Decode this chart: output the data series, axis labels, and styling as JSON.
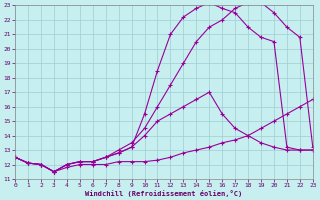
{
  "xlabel": "Windchill (Refroidissement éolien,°C)",
  "bg_color": "#c8eff0",
  "grid_color": "#9ecdd4",
  "line_color": "#990099",
  "xlim": [
    0,
    23
  ],
  "ylim": [
    11,
    23
  ],
  "xticks": [
    0,
    1,
    2,
    3,
    4,
    5,
    6,
    7,
    8,
    9,
    10,
    11,
    12,
    13,
    14,
    15,
    16,
    17,
    18,
    19,
    20,
    21,
    22,
    23
  ],
  "yticks": [
    11,
    12,
    13,
    14,
    15,
    16,
    17,
    18,
    19,
    20,
    21,
    22,
    23
  ],
  "curves": [
    {
      "x": [
        0,
        1,
        2,
        3,
        4,
        5,
        6,
        7,
        8,
        9,
        10,
        11,
        12,
        13,
        14,
        15,
        16,
        17,
        18,
        19,
        20,
        21,
        22,
        23
      ],
      "y": [
        12.5,
        12.1,
        12.0,
        11.5,
        11.8,
        12.0,
        12.0,
        12.0,
        12.2,
        12.2,
        12.2,
        12.3,
        12.5,
        12.8,
        13.0,
        13.2,
        13.5,
        13.7,
        14.0,
        14.5,
        15.0,
        15.5,
        16.0,
        16.5
      ]
    },
    {
      "x": [
        0,
        1,
        2,
        3,
        4,
        5,
        6,
        7,
        8,
        9,
        10,
        11,
        12,
        13,
        14,
        15,
        16,
        17,
        18,
        19,
        20,
        21,
        22,
        23
      ],
      "y": [
        12.5,
        12.1,
        12.0,
        11.5,
        12.0,
        12.2,
        12.2,
        12.5,
        12.8,
        13.2,
        14.0,
        15.0,
        15.5,
        16.0,
        16.5,
        17.0,
        15.5,
        14.5,
        14.0,
        13.5,
        13.2,
        13.0,
        13.0,
        13.0
      ]
    },
    {
      "x": [
        0,
        1,
        2,
        3,
        4,
        5,
        6,
        7,
        8,
        9,
        10,
        11,
        12,
        13,
        14,
        15,
        16,
        17,
        18,
        19,
        20,
        21,
        22,
        23
      ],
      "y": [
        12.5,
        12.1,
        12.0,
        11.5,
        12.0,
        12.2,
        12.2,
        12.5,
        12.8,
        13.2,
        15.5,
        18.5,
        21.0,
        22.2,
        22.8,
        23.2,
        22.8,
        22.5,
        21.5,
        20.8,
        20.5,
        13.2,
        13.0,
        13.0
      ]
    },
    {
      "x": [
        0,
        1,
        2,
        3,
        4,
        5,
        6,
        7,
        8,
        9,
        10,
        11,
        12,
        13,
        14,
        15,
        16,
        17,
        18,
        19,
        20,
        21,
        22,
        23
      ],
      "y": [
        12.5,
        12.1,
        12.0,
        11.5,
        12.0,
        12.2,
        12.2,
        12.5,
        13.0,
        13.5,
        14.5,
        16.0,
        17.5,
        19.0,
        20.5,
        21.5,
        22.0,
        22.8,
        23.2,
        23.2,
        22.5,
        21.5,
        20.8,
        13.2
      ]
    }
  ]
}
